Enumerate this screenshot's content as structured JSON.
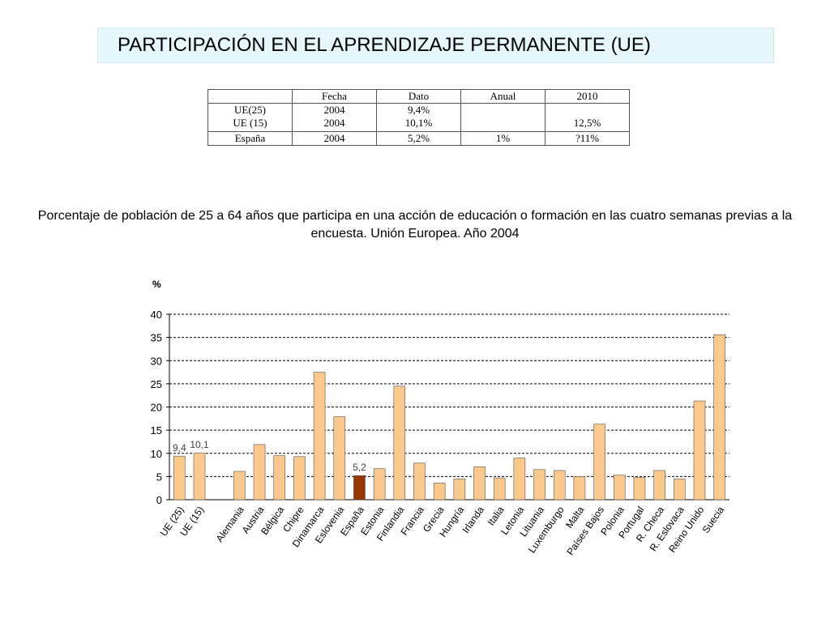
{
  "title": "PARTICIPACIÓN EN EL APRENDIZAJE PERMANENTE (UE)",
  "table": {
    "headers": [
      "",
      "Fecha",
      "Dato",
      "Anual",
      "2010"
    ],
    "rows": [
      [
        "UE(25)\nUE (15)",
        "2004\n2004",
        "9,4%\n10,1%",
        "",
        "\n12,5%"
      ],
      [
        "España",
        "2004",
        "5,2%",
        "1%",
        "?11%"
      ]
    ]
  },
  "caption": "Porcentaje de población de 25 a 64 años que participa en una acción de educación o formación en las cuatro semanas previas a la encuesta. Unión Europea. Año 2004",
  "chart_data": {
    "type": "bar",
    "ylabel": "%",
    "ylim": [
      0,
      40
    ],
    "yticks": [
      0,
      5,
      10,
      15,
      20,
      25,
      30,
      35,
      40
    ],
    "grid": true,
    "categories": [
      "UE (25)",
      "UE (15)",
      "",
      "Alemania",
      "Austria",
      "Bélgica",
      "Chipre",
      "Dinamarca",
      "Eslovenia",
      "España",
      "Estonia",
      "Finlandia",
      "Francia",
      "Grecia",
      "Hungría",
      "Irlanda",
      "Italia",
      "Letonia",
      "Lituania",
      "Luxemburgo",
      "Malta",
      "Países Bajos",
      "Polonia",
      "Portugal",
      "R. Checa",
      "R. Eslovaca",
      "Reino Unido",
      "Suecia"
    ],
    "values": [
      9.4,
      10.1,
      null,
      6.1,
      11.9,
      9.5,
      9.3,
      27.5,
      17.9,
      5.2,
      6.7,
      24.5,
      7.9,
      3.6,
      4.5,
      7.1,
      4.7,
      9.0,
      6.5,
      6.3,
      5.0,
      16.3,
      5.3,
      4.8,
      6.3,
      4.5,
      21.3,
      35.6
    ],
    "data_labels": [
      "9,4",
      "10,1",
      "",
      "",
      "",
      "",
      "",
      "",
      "",
      "5,2",
      "",
      "",
      "",
      "",
      "",
      "",
      "",
      "",
      "",
      "",
      "",
      "",
      "",
      "",
      "",
      "",
      "",
      ""
    ],
    "colors": {
      "bar": "#fcc98d",
      "highlight": "#993300",
      "highlight_index": 9,
      "grid": "#000000"
    }
  }
}
